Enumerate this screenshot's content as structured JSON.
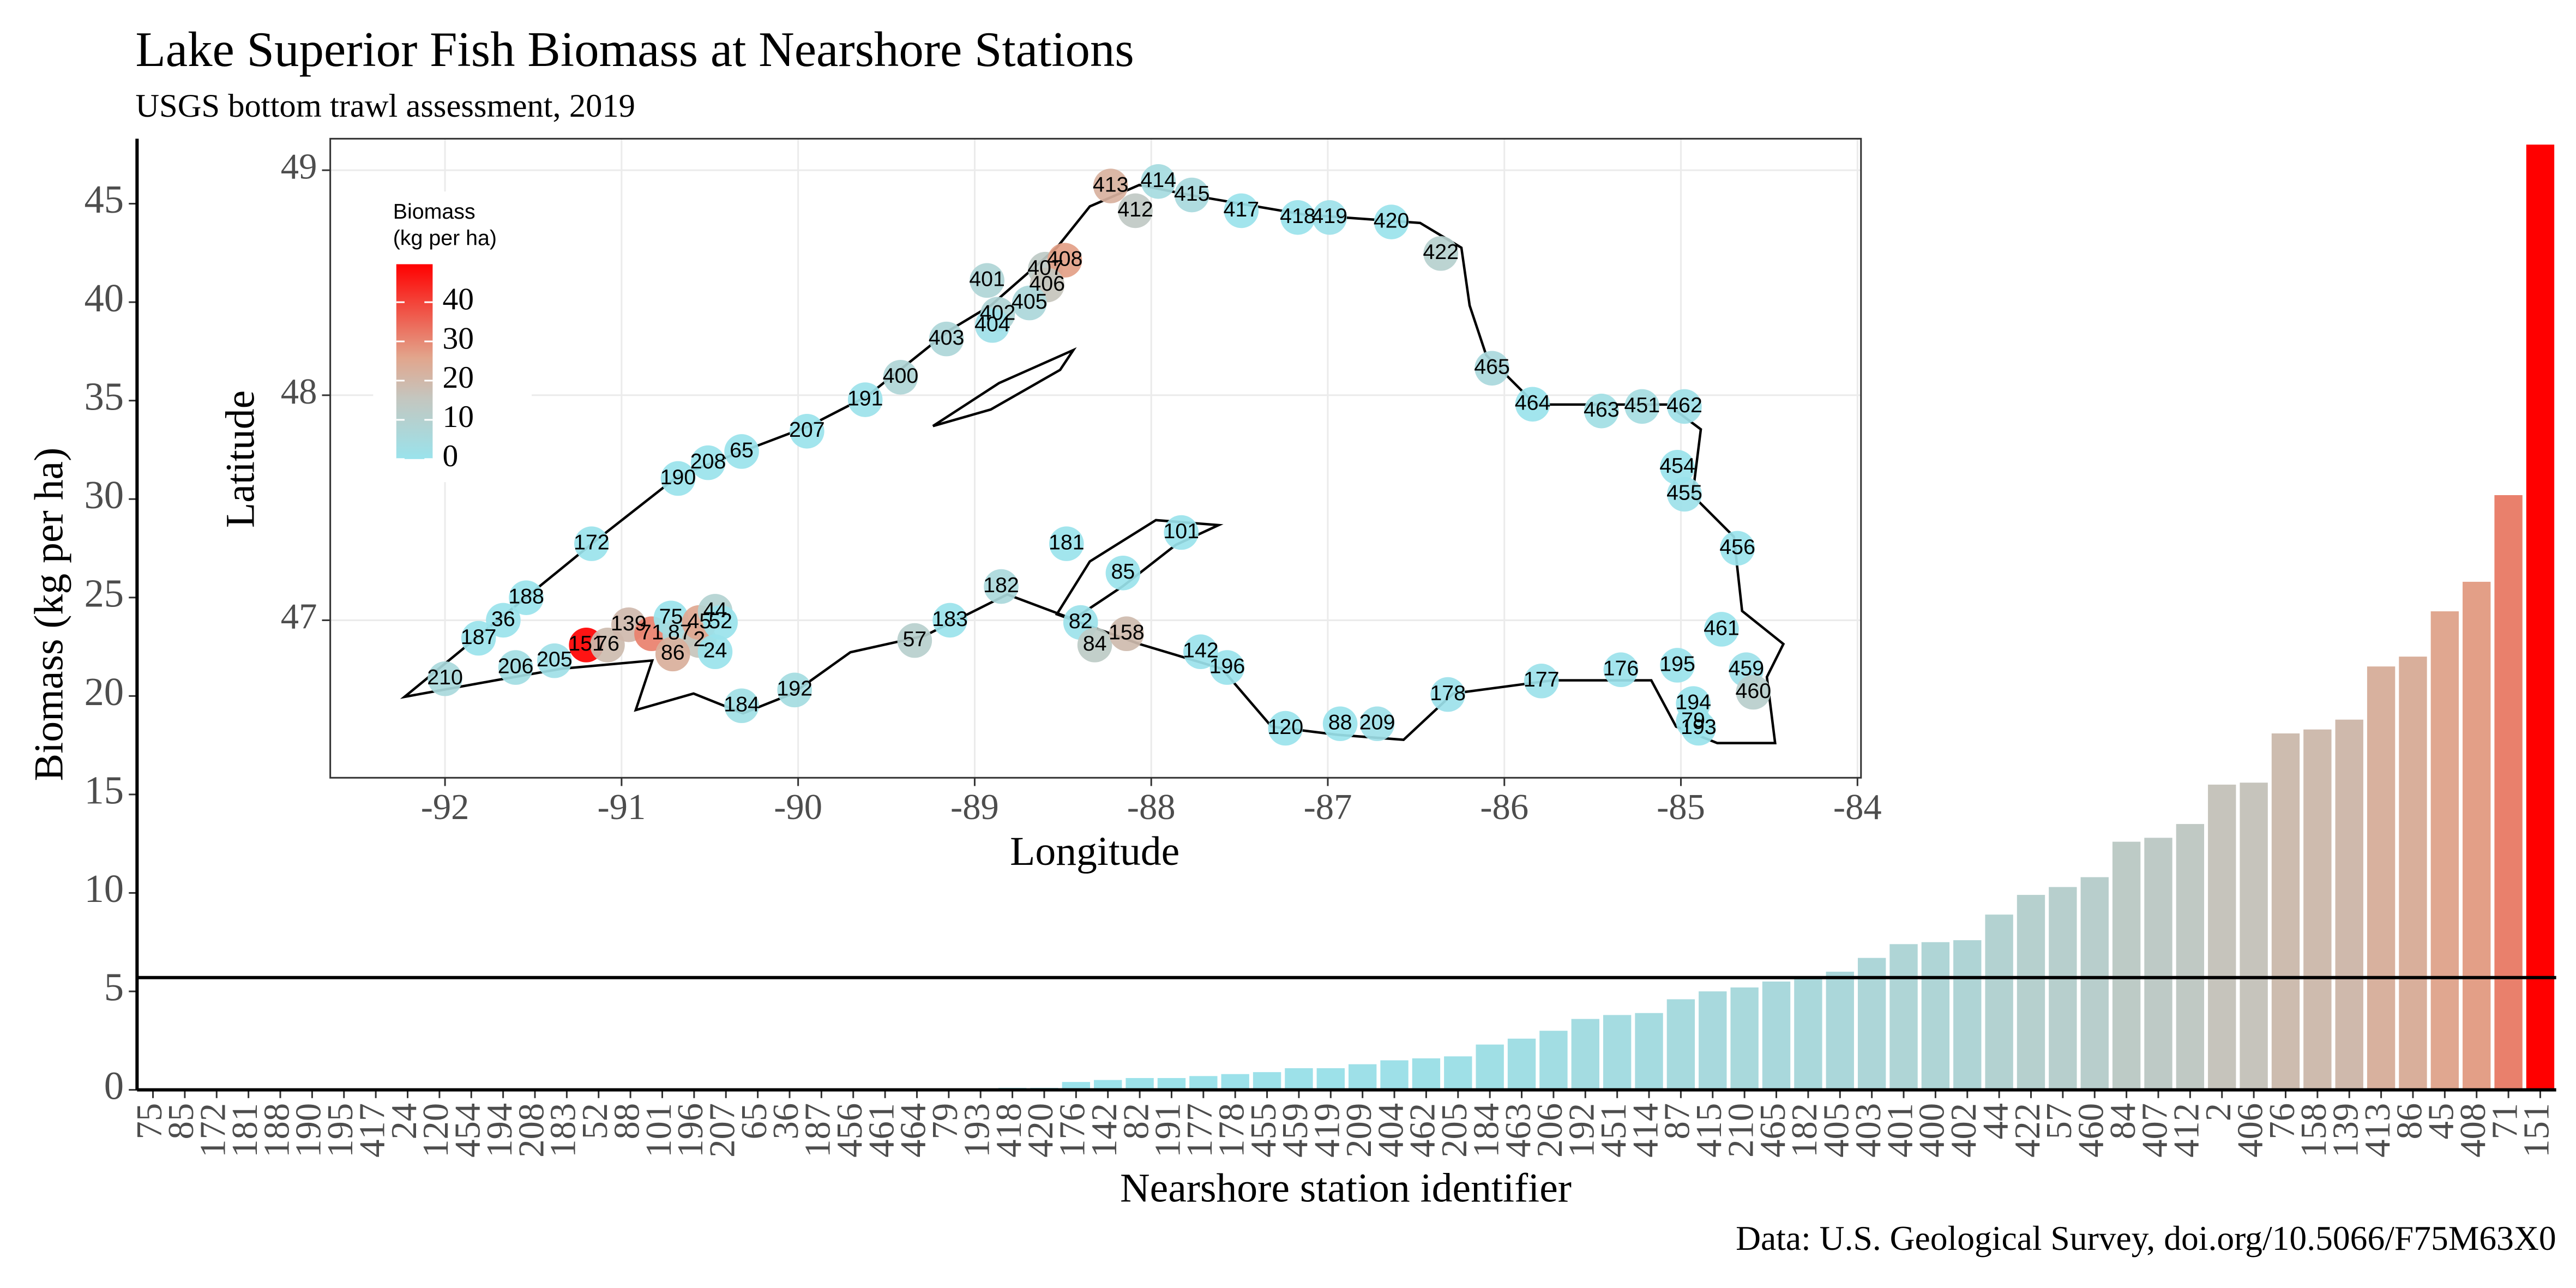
{
  "chart_data": [
    {
      "type": "bar",
      "title": "Lake Superior Fish Biomass at Nearshore Stations",
      "subtitle": "USGS bottom trawl assessment,  2019",
      "caption": "Data: U.S. Geological Survey, doi.org/10.5066/F75M63X0",
      "x_label": "Nearshore station identifier",
      "y_label": "Biomass (kg per ha)",
      "categories": [
        "75",
        "85",
        "172",
        "181",
        "188",
        "190",
        "195",
        "417",
        "24",
        "120",
        "454",
        "194",
        "208",
        "183",
        "52",
        "88",
        "101",
        "196",
        "207",
        "65",
        "36",
        "187",
        "456",
        "461",
        "464",
        "79",
        "193",
        "418",
        "420",
        "176",
        "142",
        "82",
        "191",
        "177",
        "178",
        "455",
        "459",
        "419",
        "209",
        "404",
        "462",
        "205",
        "184",
        "463",
        "206",
        "192",
        "451",
        "414",
        "87",
        "415",
        "210",
        "465",
        "182",
        "405",
        "403",
        "401",
        "400",
        "402",
        "44",
        "422",
        "57",
        "460",
        "84",
        "407",
        "412",
        "2",
        "406",
        "76",
        "158",
        "139",
        "413",
        "86",
        "45",
        "408",
        "71",
        "151"
      ],
      "values": [
        0,
        0,
        0,
        0,
        0,
        0,
        0,
        0,
        0,
        0,
        0,
        0,
        0,
        0,
        0,
        0,
        0,
        0,
        0,
        0,
        0,
        0,
        0,
        0,
        0,
        0,
        0,
        0.1,
        0.1,
        0.4,
        0.5,
        0.6,
        0.6,
        0.7,
        0.8,
        0.9,
        1.1,
        1.1,
        1.3,
        1.5,
        1.6,
        1.7,
        2.3,
        2.6,
        3.0,
        3.6,
        3.8,
        3.9,
        4.6,
        5.0,
        5.2,
        5.5,
        5.7,
        6.0,
        6.7,
        7.4,
        7.5,
        7.6,
        8.9,
        9.9,
        10.3,
        10.8,
        12.6,
        12.8,
        13.5,
        15.5,
        15.6,
        18.1,
        18.3,
        18.8,
        21.5,
        22.0,
        24.3,
        25.8,
        30.2,
        48
      ],
      "ylim": [
        0,
        48.3
      ],
      "yticks": [
        0,
        5,
        10,
        15,
        20,
        25,
        30,
        35,
        40,
        45
      ],
      "hline": 5.7,
      "color_scale": [
        {
          "value": 0,
          "color": "#9ae3ec"
        },
        {
          "value": 15,
          "color": "#c4c6bf"
        },
        {
          "value": 25,
          "color": "#e2a58c"
        },
        {
          "value": 48,
          "color": "#ff0000"
        }
      ]
    },
    {
      "type": "scatter",
      "x_label": "Longitude",
      "y_label": "Latitude",
      "labels": [
        "413",
        "414",
        "412",
        "415",
        "417",
        "418",
        "419",
        "420",
        "422",
        "401",
        "407",
        "408",
        "406",
        "405",
        "402",
        "404",
        "403",
        "400",
        "191",
        "207",
        "65",
        "208",
        "190",
        "172",
        "188",
        "36",
        "187",
        "210",
        "206",
        "205",
        "151",
        "76",
        "139",
        "71",
        "75",
        "87",
        "2",
        "45",
        "44",
        "52",
        "86",
        "24",
        "184",
        "192",
        "57",
        "183",
        "182",
        "181",
        "85",
        "101",
        "82",
        "84",
        "158",
        "142",
        "196",
        "120",
        "88",
        "209",
        "178",
        "177",
        "176",
        "195",
        "194",
        "79",
        "193",
        "459",
        "460",
        "461",
        "456",
        "455",
        "454",
        "462",
        "451",
        "463",
        "464",
        "465"
      ],
      "x": [
        -88.23,
        -87.96,
        -88.09,
        -87.77,
        -87.49,
        -87.17,
        -86.99,
        -86.64,
        -86.36,
        -88.93,
        -88.6,
        -88.49,
        -88.59,
        -88.69,
        -88.87,
        -88.9,
        -89.16,
        -89.42,
        -89.62,
        -89.95,
        -90.32,
        -90.51,
        -90.68,
        -91.17,
        -91.54,
        -91.67,
        -91.81,
        -92.0,
        -91.6,
        -91.38,
        -91.2,
        -91.08,
        -90.96,
        -90.83,
        -90.72,
        -90.67,
        -90.56,
        -90.56,
        -90.47,
        -90.44,
        -90.71,
        -90.47,
        -90.32,
        -90.02,
        -89.34,
        -89.14,
        -88.85,
        -88.48,
        -88.16,
        -87.83,
        -88.4,
        -88.32,
        -88.14,
        -87.72,
        -87.57,
        -87.24,
        -86.93,
        -86.72,
        -86.32,
        -85.79,
        -85.34,
        -85.02,
        -84.93,
        -84.93,
        -84.9,
        -84.63,
        -84.59,
        -84.77,
        -84.68,
        -84.98,
        -85.02,
        -84.98,
        -85.22,
        -85.45,
        -85.84,
        -86.07
      ],
      "y": [
        48.93,
        48.95,
        48.82,
        48.89,
        48.82,
        48.79,
        48.79,
        48.77,
        48.63,
        48.51,
        48.56,
        48.6,
        48.49,
        48.41,
        48.36,
        48.31,
        48.25,
        48.08,
        47.98,
        47.84,
        47.75,
        47.7,
        47.63,
        47.34,
        47.1,
        47.0,
        46.92,
        46.74,
        46.79,
        46.82,
        46.89,
        46.89,
        46.98,
        46.94,
        47.01,
        46.94,
        46.91,
        46.99,
        47.04,
        46.99,
        46.85,
        46.86,
        46.62,
        46.69,
        46.91,
        47.0,
        47.15,
        47.34,
        47.21,
        47.39,
        46.99,
        46.89,
        46.94,
        46.86,
        46.79,
        46.52,
        46.54,
        46.54,
        46.67,
        46.73,
        46.78,
        46.8,
        46.63,
        46.55,
        46.52,
        46.78,
        46.68,
        46.96,
        47.32,
        47.56,
        47.68,
        47.95,
        47.95,
        47.93,
        47.96,
        48.12
      ],
      "xlim": [
        -92.65,
        -83.98
      ],
      "ylim": [
        46.3,
        49.14
      ],
      "xticks": [
        -92,
        -91,
        -90,
        -89,
        -88,
        -87,
        -86,
        -85,
        -84
      ],
      "yticks": [
        47,
        48,
        49
      ],
      "grid": true,
      "legend_title": [
        "Biomass",
        "(kg per ha)"
      ],
      "legend_ticks": [
        0,
        10,
        20,
        30,
        40
      ],
      "legend_range": [
        0,
        48
      ]
    }
  ]
}
